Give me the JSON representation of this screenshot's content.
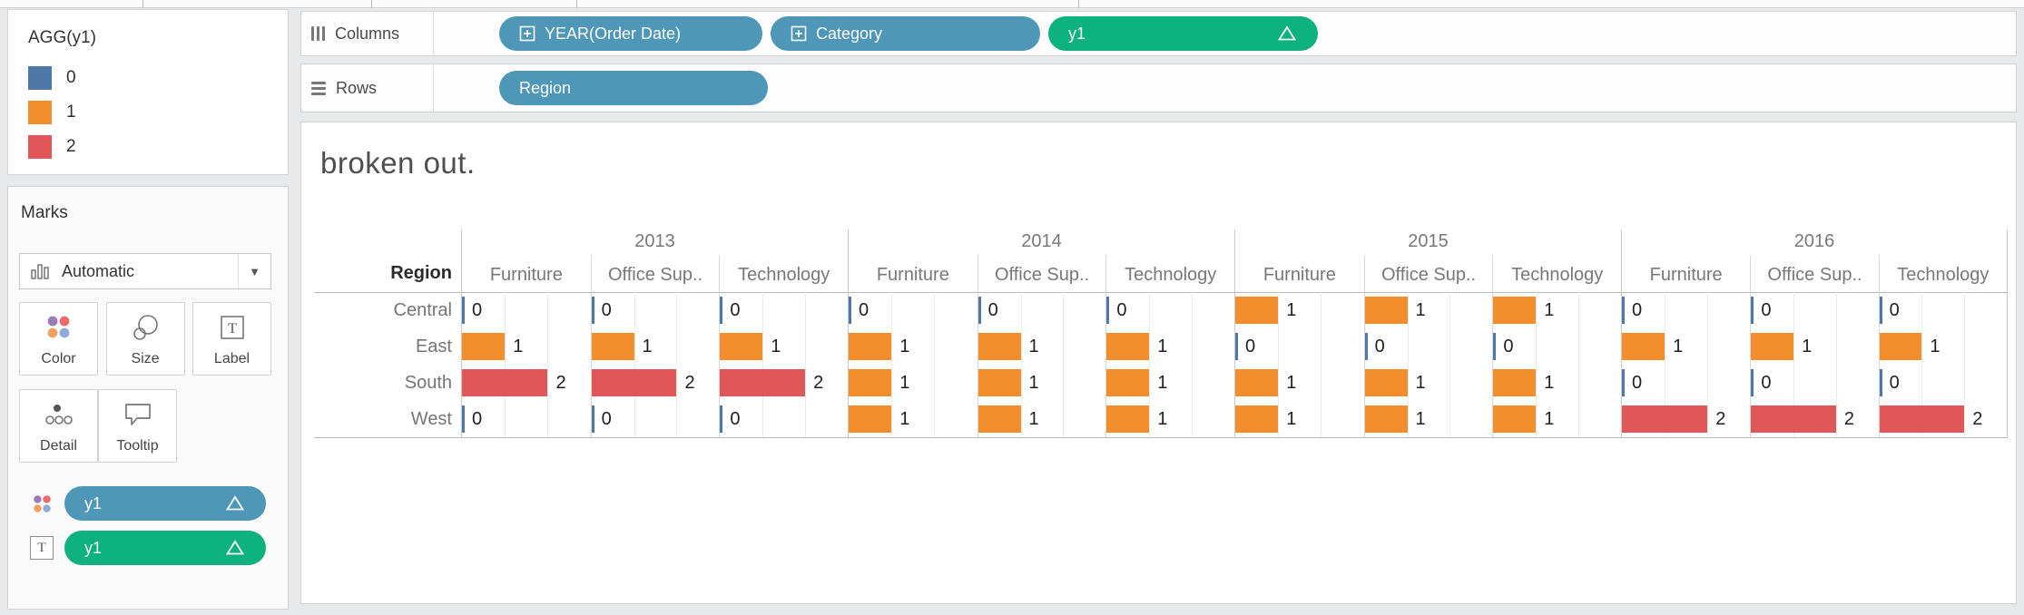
{
  "legend": {
    "title": "AGG(y1)",
    "items": [
      {
        "label": "0",
        "color": "#4e79a7"
      },
      {
        "label": "1",
        "color": "#f28e2b"
      },
      {
        "label": "2",
        "color": "#e15759"
      }
    ]
  },
  "marks": {
    "title": "Marks",
    "mark_type": "Automatic",
    "buttons_row1": [
      "Color",
      "Size",
      "Label"
    ],
    "buttons_row2": [
      "Detail",
      "Tooltip"
    ],
    "pills": [
      {
        "label": "y1",
        "delta": "Δ",
        "color": "#4e97b8",
        "icon": "color-dots-icon"
      },
      {
        "label": "y1",
        "delta": "Δ",
        "color": "#0db17d",
        "icon": "text-label-icon"
      }
    ]
  },
  "shelves": {
    "columns": {
      "label": "Columns",
      "pills": [
        {
          "label": "YEAR(Order Date)",
          "color": "#4e97b8",
          "expand": true,
          "delta": false,
          "width_class": "pill-w-year"
        },
        {
          "label": "Category",
          "color": "#4e97b8",
          "expand": true,
          "delta": false,
          "width_class": "pill-w-cat"
        },
        {
          "label": "y1",
          "color": "#0db17d",
          "expand": false,
          "delta": true,
          "width_class": "pill-w-y1"
        }
      ]
    },
    "rows": {
      "label": "Rows",
      "pills": [
        {
          "label": "Region",
          "color": "#4e97b8",
          "expand": false,
          "delta": false,
          "width_class": "pill-w-region"
        }
      ]
    }
  },
  "chart_data": {
    "type": "bar",
    "title": "broken out.",
    "row_header": "Region",
    "years": [
      "2013",
      "2014",
      "2015",
      "2016"
    ],
    "categories": [
      "Furniture",
      "Office Sup..",
      "Technology"
    ],
    "regions": [
      "Central",
      "East",
      "South",
      "West"
    ],
    "xlim": [
      0,
      3
    ],
    "grid_divisions": 3,
    "legend_title": "AGG(y1)",
    "value_colors": {
      "0": "#4e79a7",
      "1": "#f28e2b",
      "2": "#e15759"
    },
    "values": {
      "Central": {
        "2013": [
          0,
          0,
          0
        ],
        "2014": [
          0,
          0,
          0
        ],
        "2015": [
          1,
          1,
          1
        ],
        "2016": [
          0,
          0,
          0
        ]
      },
      "East": {
        "2013": [
          1,
          1,
          1
        ],
        "2014": [
          1,
          1,
          1
        ],
        "2015": [
          0,
          0,
          0
        ],
        "2016": [
          1,
          1,
          1
        ]
      },
      "South": {
        "2013": [
          2,
          2,
          2
        ],
        "2014": [
          1,
          1,
          1
        ],
        "2015": [
          1,
          1,
          1
        ],
        "2016": [
          0,
          0,
          0
        ]
      },
      "West": {
        "2013": [
          0,
          0,
          0
        ],
        "2014": [
          1,
          1,
          1
        ],
        "2015": [
          1,
          1,
          1
        ],
        "2016": [
          2,
          2,
          2
        ]
      }
    }
  }
}
